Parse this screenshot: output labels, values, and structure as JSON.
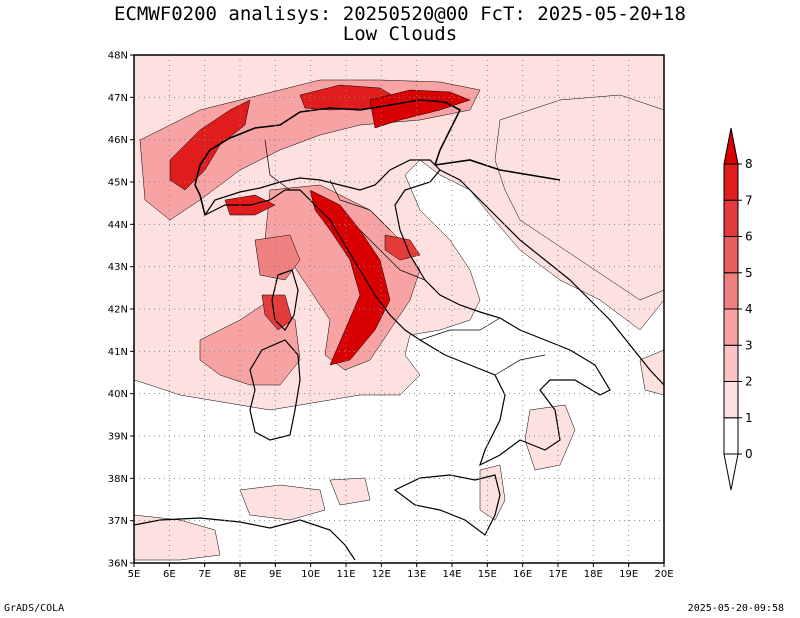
{
  "title": {
    "line1": "ECMWF0200 analisys: 20250520@00 FcT: 2025-05-20+18",
    "line2": "Low Clouds"
  },
  "footer": {
    "left": "GrADS/COLA",
    "right": "2025-05-20-09:58"
  },
  "axes": {
    "lat_labels": [
      "48N",
      "47N",
      "46N",
      "45N",
      "44N",
      "43N",
      "42N",
      "41N",
      "40N",
      "39N",
      "38N",
      "37N",
      "36N"
    ],
    "lon_labels": [
      "5E",
      "6E",
      "7E",
      "8E",
      "9E",
      "10E",
      "11E",
      "12E",
      "13E",
      "14E",
      "15E",
      "16E",
      "17E",
      "18E",
      "19E",
      "20E"
    ]
  },
  "colorbar": {
    "labels": [
      "0",
      "1",
      "2",
      "3",
      "4",
      "5",
      "6",
      "7",
      "8"
    ],
    "colors": [
      "#ffffff",
      "#fde0e0",
      "#fbc3c3",
      "#f7a3a3",
      "#f08080",
      "#ea5c5c",
      "#e43a3a",
      "#e01c1c",
      "#d80000"
    ]
  },
  "map_style": {
    "grid": true,
    "border_color": "#000000"
  }
}
